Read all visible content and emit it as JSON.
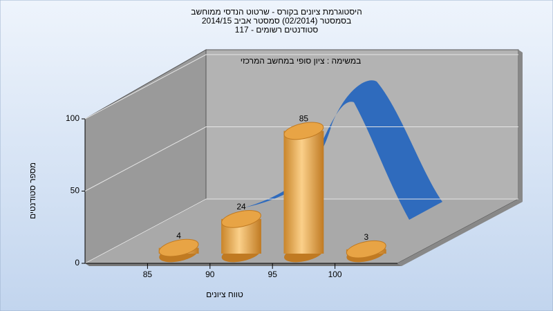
{
  "chart_data": {
    "type": "histogram",
    "title": [
      "היסטוגרמת ציונים בקורס - שרטוט הנדסי ממוחשב",
      "בסמסטר  (02/2014)  סמסטר אביב 2014/15",
      "סטודנטים רשומים - 117"
    ],
    "annotation": "במשימה : ציון סופי במחשב המרכזי",
    "x_label": "טווח ציונים",
    "y_label": "מספר סטודנטים",
    "bins": [
      85,
      90,
      95,
      100,
      105
    ],
    "values": [
      4,
      24,
      85,
      3
    ],
    "color": "#e8a445",
    "xlim": [
      80,
      105
    ],
    "xticks": [
      85,
      90,
      95,
      100
    ],
    "ylim": [
      0,
      100
    ],
    "yticks": [
      0,
      50,
      100
    ],
    "grid": true
  }
}
